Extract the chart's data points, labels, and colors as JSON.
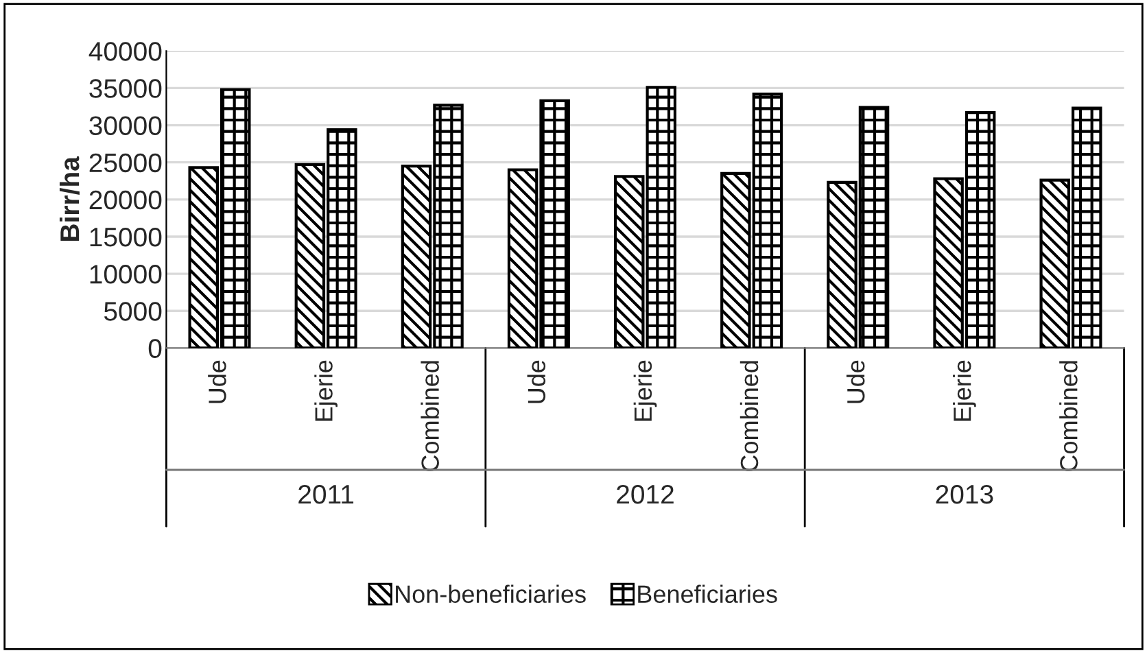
{
  "chart_data": {
    "type": "bar",
    "ylabel": "Birr/ha",
    "categories": [
      "Ude",
      "Ejerie",
      "Combined",
      "Ude",
      "Ejerie",
      "Combined",
      "Ude",
      "Ejerie",
      "Combined"
    ],
    "series": [
      {
        "name": "Non-beneficiaries",
        "color": "#000000",
        "values": [
          24300,
          24700,
          24500,
          24000,
          23100,
          23500,
          22300,
          22800,
          22600
        ]
      },
      {
        "name": "Beneficiaries",
        "color": "#000000",
        "values": [
          34800,
          29400,
          32700,
          33300,
          35100,
          34200,
          32400,
          31700,
          32300
        ]
      }
    ],
    "annotations": [
      "2011",
      "2012",
      "2013"
    ],
    "ylim": [
      0,
      40000
    ],
    "yticks": [
      0,
      5000,
      10000,
      15000,
      20000,
      25000,
      30000,
      35000,
      40000
    ],
    "grid": "y",
    "legend": "bottom"
  }
}
